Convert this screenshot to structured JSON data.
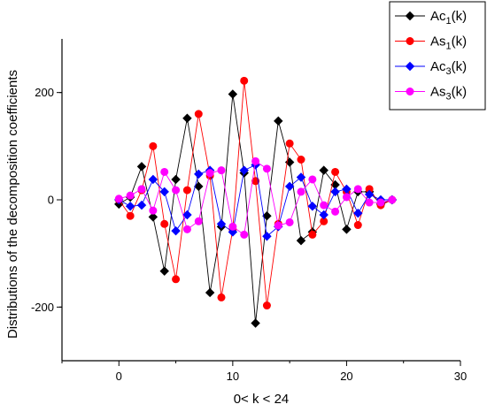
{
  "chart_data": {
    "type": "scatter",
    "xlabel": "0< k < 24",
    "ylabel": "Distributions of the decomposition coefficients",
    "xlim": [
      -5,
      30
    ],
    "ylim": [
      -300,
      300
    ],
    "x_ticks": [
      0,
      10,
      20,
      30
    ],
    "y_ticks": [
      -200,
      0,
      200
    ],
    "grid": false,
    "legend_placement": "top-right",
    "series": [
      {
        "name": "Ac",
        "sub": "1",
        "suffix": "(k)",
        "color": "#000000",
        "marker": "diamond",
        "x": [
          0,
          1,
          2,
          3,
          4,
          5,
          6,
          7,
          8,
          9,
          10,
          11,
          12,
          13,
          14,
          15,
          16,
          17,
          18,
          19,
          20,
          21,
          22,
          23,
          24
        ],
        "y": [
          -8,
          5,
          62,
          -32,
          -133,
          38,
          152,
          25,
          -173,
          -50,
          197,
          50,
          -230,
          -30,
          147,
          70,
          -76,
          -60,
          55,
          28,
          -55,
          15,
          15,
          -8,
          0
        ]
      },
      {
        "name": "As",
        "sub": "1",
        "suffix": "(k)",
        "color": "#ff0000",
        "marker": "circle",
        "x": [
          0,
          1,
          2,
          3,
          4,
          5,
          6,
          7,
          8,
          9,
          10,
          11,
          12,
          13,
          14,
          15,
          16,
          17,
          18,
          19,
          20,
          21,
          22,
          23,
          24
        ],
        "y": [
          0,
          -30,
          18,
          100,
          -45,
          -148,
          18,
          160,
          45,
          -182,
          -55,
          222,
          35,
          -197,
          -45,
          105,
          75,
          -65,
          -40,
          52,
          15,
          -47,
          20,
          -10,
          0
        ]
      },
      {
        "name": "Ac",
        "sub": "3",
        "suffix": "(k)",
        "color": "#0000ff",
        "marker": "diamond",
        "x": [
          0,
          1,
          2,
          3,
          4,
          5,
          6,
          7,
          8,
          9,
          10,
          11,
          12,
          13,
          14,
          15,
          16,
          17,
          18,
          19,
          20,
          21,
          22,
          23,
          24
        ],
        "y": [
          0,
          -12,
          -10,
          38,
          15,
          -58,
          -28,
          48,
          55,
          -45,
          -60,
          55,
          65,
          -68,
          -50,
          25,
          42,
          -12,
          -28,
          15,
          20,
          -25,
          10,
          0,
          0
        ]
      },
      {
        "name": "As",
        "sub": "3",
        "suffix": "(k)",
        "color": "#ff00ff",
        "marker": "circle",
        "x": [
          0,
          1,
          2,
          3,
          4,
          5,
          6,
          7,
          8,
          9,
          10,
          11,
          12,
          13,
          14,
          15,
          16,
          17,
          18,
          19,
          20,
          21,
          22,
          23,
          24
        ],
        "y": [
          2,
          8,
          20,
          -20,
          52,
          18,
          -55,
          -40,
          50,
          55,
          -50,
          -65,
          72,
          58,
          -48,
          -42,
          15,
          38,
          -10,
          -22,
          5,
          20,
          -5,
          -5,
          0
        ]
      }
    ]
  }
}
